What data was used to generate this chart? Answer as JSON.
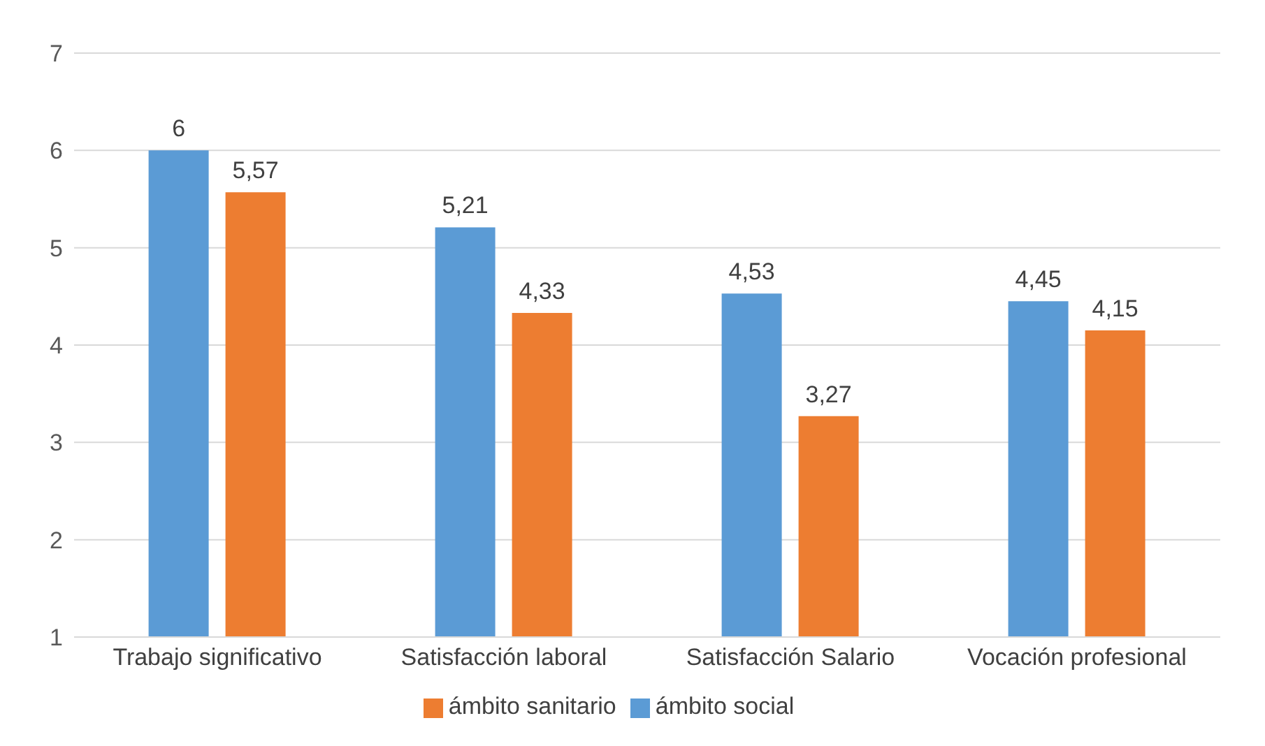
{
  "chart_data": {
    "type": "bar",
    "categories": [
      "Trabajo significativo",
      "Satisfacción laboral",
      "Satisfacción Salario",
      "Vocación profesional"
    ],
    "series": [
      {
        "name": "ámbito social",
        "color": "#5b9bd5",
        "values": [
          6,
          5.21,
          4.53,
          4.45
        ],
        "value_labels": [
          "6",
          "5,21",
          "4,53",
          "4,45"
        ]
      },
      {
        "name": "ámbito sanitario",
        "color": "#ed7d31",
        "values": [
          5.57,
          4.33,
          3.27,
          4.15
        ],
        "value_labels": [
          "5,57",
          "4,33",
          "3,27",
          "4,15"
        ]
      }
    ],
    "ylim": [
      1,
      7
    ],
    "yticks": [
      1,
      2,
      3,
      4,
      5,
      6,
      7
    ],
    "grid": "y",
    "legend": "bottom"
  }
}
